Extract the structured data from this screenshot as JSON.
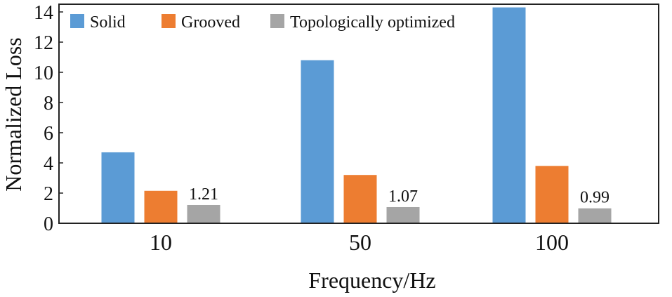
{
  "chart_data": {
    "type": "bar",
    "title": "",
    "xlabel": "Frequency/Hz",
    "ylabel": "Normalized Loss",
    "categories": [
      "10",
      "50",
      "100"
    ],
    "ylim": [
      0,
      14
    ],
    "yticks": [
      "0",
      "2",
      "4",
      "6",
      "8",
      "10",
      "12",
      "14"
    ],
    "grid": false,
    "legend_position": "top-left",
    "series": [
      {
        "name": "Solid",
        "color": "#5b9bd5",
        "values": [
          4.7,
          10.8,
          14.3
        ]
      },
      {
        "name": "Grooved",
        "color": "#ed7d31",
        "values": [
          2.15,
          3.2,
          3.8
        ]
      },
      {
        "name": "Topologically optimized",
        "color": "#a5a5a5",
        "values": [
          1.21,
          1.07,
          0.99
        ]
      }
    ],
    "data_labels": [
      {
        "series": 2,
        "labels": [
          "1.21",
          "1.07",
          "0.99"
        ]
      }
    ]
  }
}
